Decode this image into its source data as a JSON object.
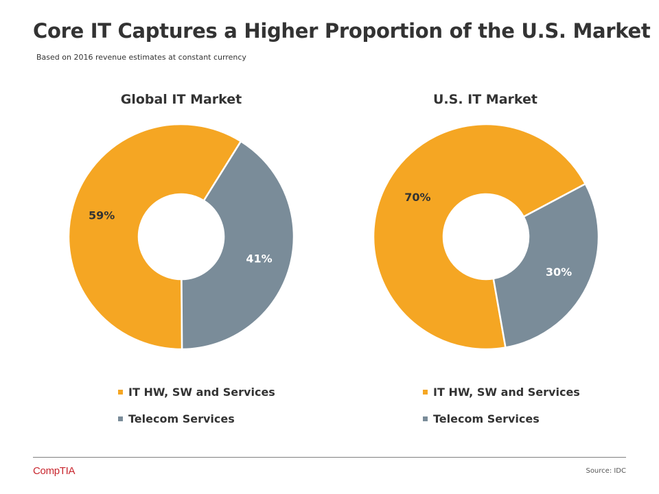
{
  "title": "Core IT Captures a Higher Proportion of the U.S. Market",
  "subtitle": "Based on 2016  revenue estimates at constant currency",
  "colors": {
    "it": "#F5A623",
    "telecom": "#7A8C99",
    "text": "#333333",
    "label_dark": "#333333",
    "label_light": "#FFFFFF"
  },
  "chart_data": [
    {
      "type": "pie",
      "style": "donut",
      "title": "Global IT Market",
      "categories": [
        "IT HW, SW and Services",
        "Telecom Services"
      ],
      "values": [
        59,
        41
      ],
      "labels": [
        "59%",
        "41%"
      ],
      "legend": [
        "IT HW, SW and Services",
        "Telecom Services"
      ],
      "legend_position": "bottom"
    },
    {
      "type": "pie",
      "style": "donut",
      "title": "U.S. IT Market",
      "categories": [
        "IT HW, SW and Services",
        "Telecom Services"
      ],
      "values": [
        70,
        30
      ],
      "labels": [
        "70%",
        "30%"
      ],
      "legend": [
        "IT HW, SW and Services",
        "Telecom Services"
      ],
      "legend_position": "bottom"
    }
  ],
  "footer": {
    "logo": "CompTIA",
    "source": "Source: IDC"
  }
}
